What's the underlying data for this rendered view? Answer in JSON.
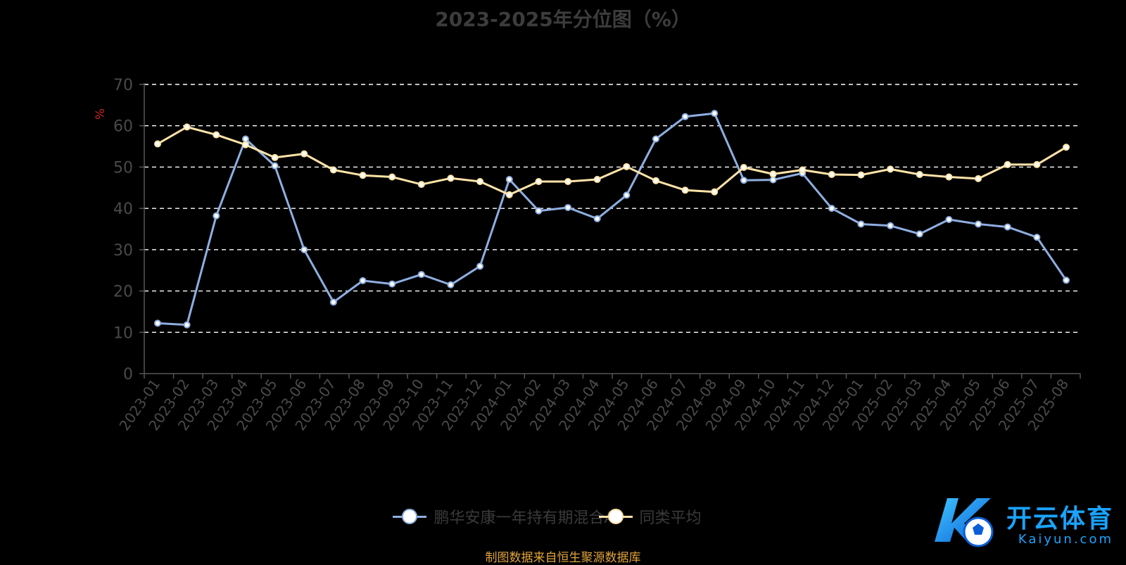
{
  "title": "2023-2025年分位图（%）",
  "source_note": "制图数据来自恒生聚源数据库",
  "watermark": {
    "cn": "开云体育",
    "en": "Kaiyun.com"
  },
  "colors": {
    "series_a": "#8eaee0",
    "series_b": "#ffe3a8",
    "grid": "#ffffff",
    "axis": "#555555",
    "tick_text": "#4a4a4a",
    "unit_text": "#cc2222",
    "source_text": "#e0a43a",
    "watermark": "#1aa3ff"
  },
  "chart_data": {
    "type": "line",
    "title": "2023-2025年分位图（%）",
    "ylabel": "%",
    "ylim": [
      0,
      70
    ],
    "yticks": [
      0,
      10,
      20,
      30,
      40,
      50,
      60,
      70
    ],
    "grid": true,
    "legend_position": "bottom",
    "categories": [
      "2023-01",
      "2023-02",
      "2023-03",
      "2023-04",
      "2023-05",
      "2023-06",
      "2023-07",
      "2023-08",
      "2023-09",
      "2023-10",
      "2023-11",
      "2023-12",
      "2024-01",
      "2024-02",
      "2024-03",
      "2024-04",
      "2024-05",
      "2024-06",
      "2024-07",
      "2024-08",
      "2024-09",
      "2024-10",
      "2024-11",
      "2024-12",
      "2025-01",
      "2025-02",
      "2025-03",
      "2025-04",
      "2025-05",
      "2025-06",
      "2025-07",
      "2025-08"
    ],
    "series": [
      {
        "name": "鹏华安康一年持有期混合A",
        "values": [
          12.2,
          11.8,
          38.2,
          56.8,
          50.3,
          30.0,
          17.3,
          22.5,
          21.7,
          24.0,
          21.5,
          26.0,
          47.0,
          39.4,
          40.2,
          37.5,
          43.2,
          56.8,
          62.2,
          63.0,
          46.8,
          46.9,
          48.5,
          40.0,
          36.2,
          35.8,
          33.8,
          37.3,
          36.2,
          35.5,
          33.0,
          22.6
        ]
      },
      {
        "name": "同类平均",
        "values": [
          55.6,
          59.7,
          57.8,
          55.4,
          52.3,
          53.2,
          49.3,
          48.0,
          47.6,
          45.8,
          47.3,
          46.5,
          43.3,
          46.5,
          46.5,
          47.0,
          50.1,
          46.7,
          44.4,
          44.0,
          49.9,
          48.3,
          49.3,
          48.2,
          48.1,
          49.5,
          48.2,
          47.6,
          47.2,
          50.6,
          50.6,
          54.8
        ]
      }
    ]
  }
}
